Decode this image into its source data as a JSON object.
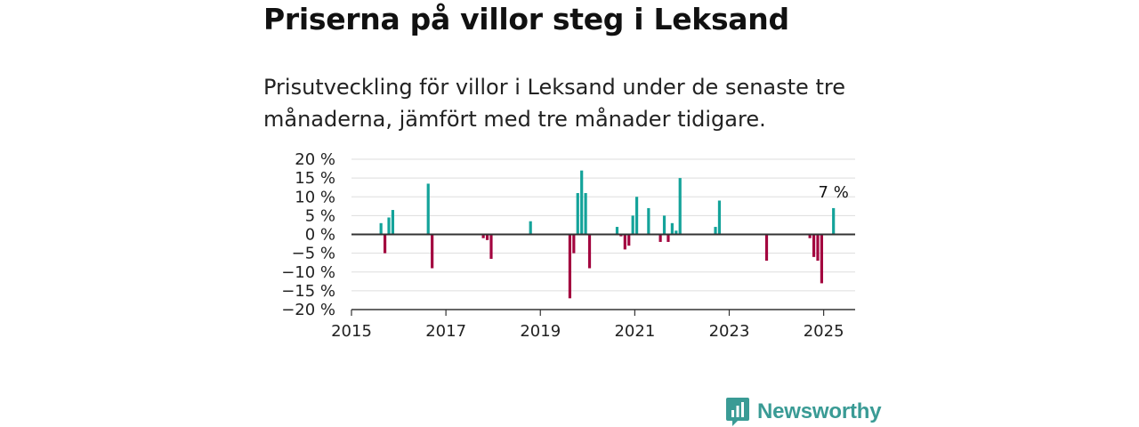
{
  "title": "Priserna på villor steg i Leksand",
  "subtitle": "Prisutveckling för villor i Leksand under de senaste tre månaderna, jämfört med tre månader tidigare.",
  "brand": {
    "name": "Newsworthy"
  },
  "colors": {
    "positive": "#14a39a",
    "negative": "#a3053f",
    "zero_line": "#333333",
    "grid": "#dddddd",
    "brand": "#3a9b95"
  },
  "chart_data": {
    "type": "bar",
    "title": "",
    "xlabel": "",
    "ylabel": "",
    "ylim": [
      -20,
      20
    ],
    "y_ticks": [
      {
        "value": 20,
        "label": "20 %"
      },
      {
        "value": 15,
        "label": "15 %"
      },
      {
        "value": 10,
        "label": "10 %"
      },
      {
        "value": 5,
        "label": "5 %"
      },
      {
        "value": 0,
        "label": "0 %"
      },
      {
        "value": -5,
        "label": "−5 %"
      },
      {
        "value": -10,
        "label": "−10 %"
      },
      {
        "value": -15,
        "label": "−15 %"
      },
      {
        "value": -20,
        "label": "−20 %"
      }
    ],
    "x_ticks": [
      {
        "value": "2015-01",
        "label": "2015"
      },
      {
        "value": "2017-01",
        "label": "2017"
      },
      {
        "value": "2019-01",
        "label": "2019"
      },
      {
        "value": "2021-01",
        "label": "2021"
      },
      {
        "value": "2023-01",
        "label": "2023"
      },
      {
        "value": "2025-01",
        "label": "2025"
      }
    ],
    "xlim": [
      "2015-01",
      "2025-09"
    ],
    "grid": true,
    "data_label": {
      "x": "2025-03",
      "text": "7 %"
    },
    "series": [
      {
        "values": [
          {
            "x": "2015-08",
            "y": 3
          },
          {
            "x": "2015-09",
            "y": -5
          },
          {
            "x": "2015-10",
            "y": 4.5
          },
          {
            "x": "2015-11",
            "y": 6.5
          },
          {
            "x": "2016-08",
            "y": 13.5
          },
          {
            "x": "2016-09",
            "y": -9
          },
          {
            "x": "2017-10",
            "y": -1
          },
          {
            "x": "2017-11",
            "y": -1.5
          },
          {
            "x": "2017-12",
            "y": -6.5
          },
          {
            "x": "2018-10",
            "y": 3.5
          },
          {
            "x": "2019-08",
            "y": -17
          },
          {
            "x": "2019-09",
            "y": -5
          },
          {
            "x": "2019-10",
            "y": 11
          },
          {
            "x": "2019-11",
            "y": 17
          },
          {
            "x": "2019-12",
            "y": 11
          },
          {
            "x": "2020-01",
            "y": -9
          },
          {
            "x": "2020-08",
            "y": 2
          },
          {
            "x": "2020-09",
            "y": -0.5
          },
          {
            "x": "2020-10",
            "y": -4
          },
          {
            "x": "2020-11",
            "y": -3
          },
          {
            "x": "2020-12",
            "y": 5
          },
          {
            "x": "2021-01",
            "y": 10
          },
          {
            "x": "2021-04",
            "y": 7
          },
          {
            "x": "2021-07",
            "y": -2
          },
          {
            "x": "2021-08",
            "y": 5
          },
          {
            "x": "2021-09",
            "y": -2
          },
          {
            "x": "2021-10",
            "y": 3
          },
          {
            "x": "2021-11",
            "y": 1
          },
          {
            "x": "2021-12",
            "y": 15
          },
          {
            "x": "2022-09",
            "y": 2
          },
          {
            "x": "2022-10",
            "y": 9
          },
          {
            "x": "2023-10",
            "y": -7
          },
          {
            "x": "2024-09",
            "y": -1
          },
          {
            "x": "2024-10",
            "y": -6
          },
          {
            "x": "2024-11",
            "y": -7
          },
          {
            "x": "2024-12",
            "y": -13
          },
          {
            "x": "2025-03",
            "y": 7
          }
        ]
      }
    ]
  }
}
